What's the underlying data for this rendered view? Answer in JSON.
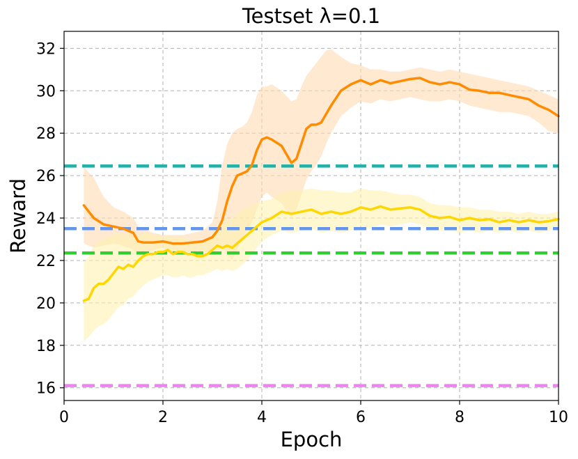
{
  "chart_data": {
    "type": "line",
    "title": "Testset  λ=0.1",
    "xlabel": "Epoch",
    "ylabel": "Reward",
    "xlim": [
      0,
      10
    ],
    "ylim": [
      15.4,
      32.8
    ],
    "xticks": [
      0,
      2,
      4,
      6,
      8,
      10
    ],
    "yticks": [
      16,
      18,
      20,
      22,
      24,
      26,
      28,
      30,
      32
    ],
    "grid": true,
    "series": [
      {
        "color": "#ff8c00",
        "fill_color": "#ffdab0",
        "x": [
          0.4,
          0.6,
          0.8,
          1.0,
          1.2,
          1.4,
          1.5,
          1.6,
          1.8,
          2.0,
          2.2,
          2.4,
          2.6,
          2.8,
          3.0,
          3.1,
          3.2,
          3.3,
          3.4,
          3.5,
          3.6,
          3.7,
          3.8,
          3.9,
          4.0,
          4.1,
          4.2,
          4.4,
          4.6,
          4.7,
          4.8,
          4.9,
          5.0,
          5.1,
          5.2,
          5.3,
          5.4,
          5.6,
          5.8,
          6.0,
          6.2,
          6.4,
          6.6,
          6.8,
          7.0,
          7.2,
          7.4,
          7.6,
          7.8,
          8.0,
          8.2,
          8.4,
          8.6,
          8.8,
          9.0,
          9.2,
          9.4,
          9.6,
          9.8,
          10.0
        ],
        "y": [
          24.6,
          24.0,
          23.7,
          23.6,
          23.5,
          23.3,
          22.9,
          22.85,
          22.85,
          22.9,
          22.8,
          22.8,
          22.85,
          22.9,
          23.1,
          23.4,
          23.9,
          24.8,
          25.5,
          26.0,
          26.1,
          26.2,
          26.5,
          27.2,
          27.7,
          27.8,
          27.7,
          27.4,
          26.6,
          26.8,
          27.5,
          28.2,
          28.4,
          28.4,
          28.5,
          28.9,
          29.3,
          30.0,
          30.3,
          30.5,
          30.3,
          30.5,
          30.35,
          30.45,
          30.55,
          30.6,
          30.4,
          30.3,
          30.4,
          30.3,
          30.05,
          30.0,
          29.9,
          29.9,
          29.8,
          29.7,
          29.6,
          29.3,
          29.1,
          28.8
        ],
        "upper": [
          26.4,
          25.9,
          25.0,
          24.5,
          24.3,
          24.0,
          23.6,
          23.5,
          23.3,
          23.2,
          23.2,
          23.2,
          23.3,
          23.4,
          23.8,
          24.8,
          26.5,
          27.5,
          28.0,
          28.2,
          28.3,
          28.5,
          29.0,
          29.8,
          30.2,
          30.2,
          30.3,
          30.0,
          29.5,
          29.6,
          30.2,
          30.7,
          31.0,
          31.3,
          31.6,
          31.9,
          31.95,
          31.6,
          31.3,
          31.2,
          31.0,
          31.0,
          30.9,
          30.9,
          31.0,
          31.1,
          31.0,
          30.9,
          31.0,
          30.9,
          30.8,
          30.7,
          30.6,
          30.5,
          30.4,
          30.3,
          30.2,
          30.0,
          29.8,
          29.6
        ],
        "lower": [
          22.8,
          22.6,
          22.7,
          22.8,
          22.7,
          22.5,
          22.2,
          22.3,
          22.5,
          22.6,
          22.4,
          22.4,
          22.4,
          22.4,
          22.4,
          22.5,
          22.6,
          22.3,
          22.0,
          22.5,
          23.0,
          23.4,
          23.8,
          24.4,
          25.0,
          25.2,
          25.0,
          24.7,
          24.0,
          24.4,
          25.1,
          25.8,
          26.2,
          26.5,
          26.9,
          27.5,
          28.0,
          28.8,
          29.2,
          29.5,
          29.4,
          29.6,
          29.5,
          29.6,
          29.7,
          29.6,
          29.5,
          29.5,
          29.6,
          29.5,
          29.3,
          29.2,
          29.1,
          29.0,
          29.0,
          28.9,
          28.8,
          28.5,
          28.1,
          28.0
        ]
      },
      {
        "color": "#ffd700",
        "fill_color": "#fff2b0",
        "x": [
          0.4,
          0.5,
          0.6,
          0.7,
          0.8,
          0.9,
          1.0,
          1.1,
          1.2,
          1.3,
          1.4,
          1.5,
          1.6,
          1.7,
          1.8,
          1.9,
          2.0,
          2.1,
          2.2,
          2.3,
          2.4,
          2.5,
          2.6,
          2.7,
          2.8,
          2.9,
          3.0,
          3.1,
          3.2,
          3.3,
          3.4,
          3.5,
          3.6,
          3.7,
          3.8,
          3.9,
          4.0,
          4.2,
          4.4,
          4.6,
          4.8,
          5.0,
          5.2,
          5.4,
          5.6,
          5.8,
          6.0,
          6.2,
          6.4,
          6.6,
          6.8,
          7.0,
          7.2,
          7.4,
          7.6,
          7.8,
          8.0,
          8.2,
          8.4,
          8.6,
          8.8,
          9.0,
          9.2,
          9.4,
          9.6,
          9.8,
          10.0
        ],
        "y": [
          20.1,
          20.2,
          20.7,
          20.9,
          20.9,
          21.1,
          21.4,
          21.7,
          21.6,
          21.8,
          21.7,
          22.0,
          22.2,
          22.3,
          22.3,
          22.4,
          22.4,
          22.5,
          22.3,
          22.4,
          22.4,
          22.3,
          22.3,
          22.2,
          22.2,
          22.3,
          22.5,
          22.7,
          22.6,
          22.7,
          22.6,
          22.8,
          23.0,
          23.2,
          23.4,
          23.6,
          23.8,
          24.0,
          24.3,
          24.2,
          24.3,
          24.4,
          24.2,
          24.3,
          24.2,
          24.3,
          24.5,
          24.4,
          24.55,
          24.4,
          24.45,
          24.5,
          24.4,
          24.1,
          24.0,
          24.05,
          23.9,
          24.0,
          23.9,
          23.95,
          23.8,
          23.9,
          23.8,
          23.9,
          23.8,
          23.85,
          23.95
        ],
        "upper": [
          21.9,
          22.2,
          22.7,
          22.9,
          23.0,
          23.1,
          23.2,
          23.3,
          23.2,
          23.3,
          23.1,
          23.2,
          23.3,
          23.3,
          23.2,
          23.2,
          23.1,
          23.2,
          23.1,
          23.1,
          23.1,
          23.0,
          22.9,
          22.9,
          22.9,
          23.0,
          23.3,
          23.6,
          23.7,
          23.9,
          24.0,
          24.2,
          24.4,
          24.5,
          24.6,
          24.7,
          24.8,
          24.9,
          25.2,
          25.3,
          25.3,
          25.4,
          25.3,
          25.3,
          25.2,
          25.2,
          25.4,
          25.3,
          25.3,
          25.2,
          25.1,
          25.1,
          25.0,
          24.7,
          24.6,
          24.6,
          24.5,
          24.5,
          24.4,
          24.4,
          24.3,
          24.3,
          24.2,
          24.3,
          24.2,
          24.2,
          24.3
        ],
        "lower": [
          18.2,
          18.4,
          18.7,
          18.9,
          19.0,
          19.2,
          19.5,
          19.8,
          19.9,
          20.2,
          20.3,
          20.6,
          20.8,
          21.0,
          21.1,
          21.2,
          21.3,
          21.3,
          21.2,
          21.2,
          21.3,
          21.2,
          21.2,
          21.3,
          21.3,
          21.4,
          21.5,
          21.6,
          21.5,
          21.6,
          21.5,
          21.6,
          21.8,
          22.0,
          22.3,
          22.6,
          22.9,
          23.2,
          23.4,
          23.3,
          23.4,
          23.5,
          23.3,
          23.4,
          23.3,
          23.4,
          23.6,
          23.5,
          23.7,
          23.6,
          23.7,
          23.8,
          23.7,
          23.5,
          23.4,
          23.4,
          23.3,
          23.4,
          23.3,
          23.4,
          23.3,
          23.4,
          23.3,
          23.4,
          23.3,
          23.4,
          23.5
        ]
      }
    ],
    "baselines": [
      {
        "y": 26.45,
        "color": "#20b2aa"
      },
      {
        "y": 23.5,
        "color": "#6495ed"
      },
      {
        "y": 22.35,
        "color": "#32cd32"
      },
      {
        "y": 16.1,
        "color": "#ee82ee"
      }
    ]
  }
}
